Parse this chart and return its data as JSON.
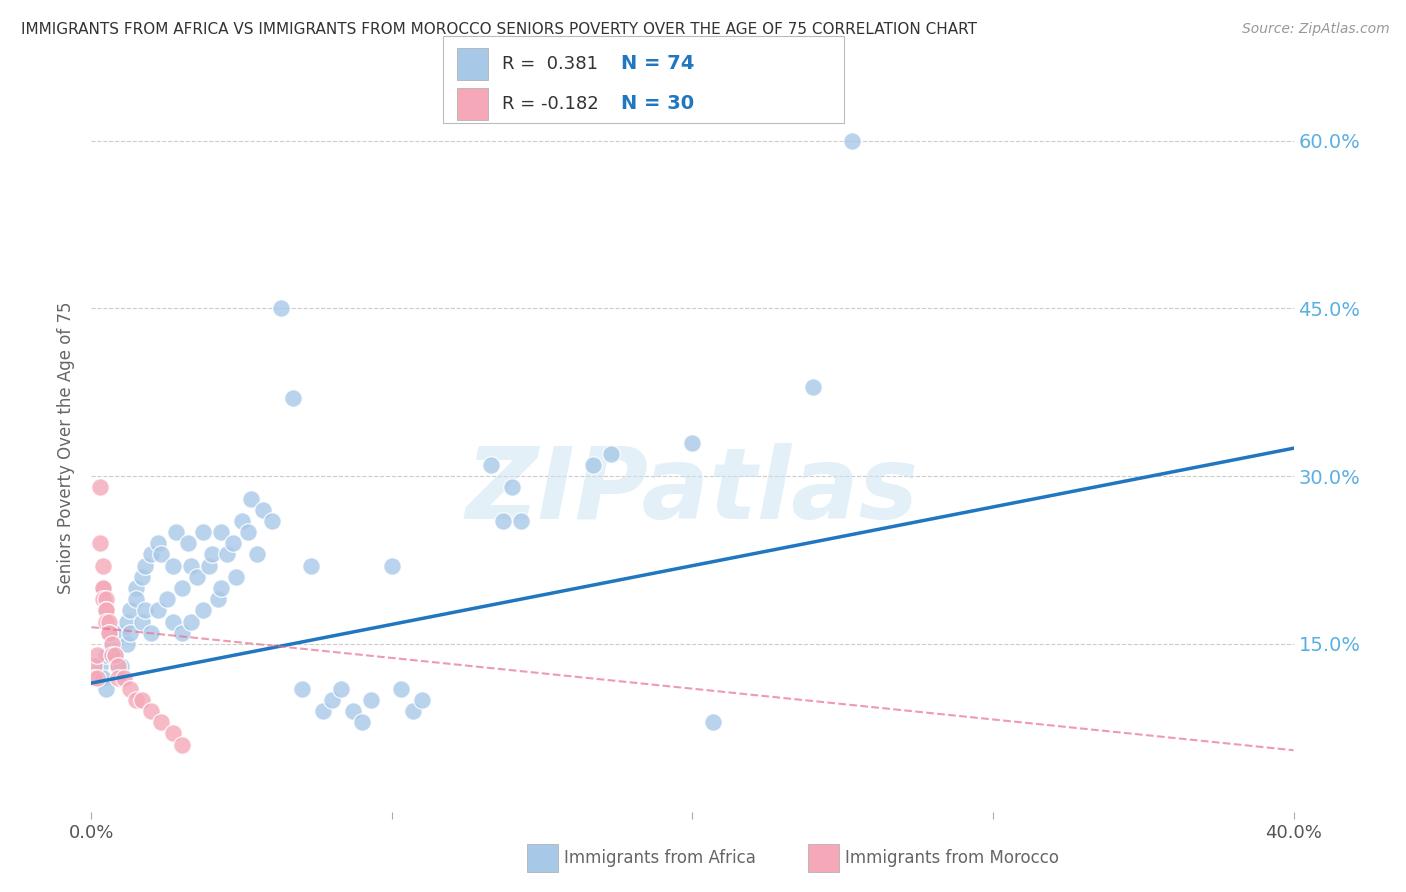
{
  "title": "IMMIGRANTS FROM AFRICA VS IMMIGRANTS FROM MOROCCO SENIORS POVERTY OVER THE AGE OF 75 CORRELATION CHART",
  "source": "Source: ZipAtlas.com",
  "ylabel": "Seniors Poverty Over the Age of 75",
  "xlim": [
    0.0,
    0.4
  ],
  "ylim": [
    0.0,
    0.65
  ],
  "yticks_right": [
    0.15,
    0.3,
    0.45,
    0.6
  ],
  "ytick_labels_right": [
    "15.0%",
    "30.0%",
    "45.0%",
    "60.0%"
  ],
  "xticks": [
    0.0,
    0.1,
    0.2,
    0.3,
    0.4
  ],
  "xtick_labels": [
    "0.0%",
    "",
    "",
    "",
    "40.0%"
  ],
  "grid_color": "#cccccc",
  "background_color": "#ffffff",
  "watermark": "ZIPatlas",
  "legend_R_africa": "R =  0.381",
  "legend_N_africa": "N = 74",
  "legend_R_morocco": "R = -0.182",
  "legend_N_morocco": "N = 30",
  "legend_text_color": "#2176c0",
  "legend_R_color": "#333333",
  "africa_color": "#a8c8e8",
  "morocco_color": "#f4a8b8",
  "africa_line_color": "#2176c0",
  "morocco_line_color": "#e87090",
  "right_label_color": "#5ab0e0",
  "africa_scatter": [
    [
      0.003,
      0.13
    ],
    [
      0.004,
      0.12
    ],
    [
      0.005,
      0.14
    ],
    [
      0.005,
      0.11
    ],
    [
      0.007,
      0.15
    ],
    [
      0.008,
      0.14
    ],
    [
      0.009,
      0.13
    ],
    [
      0.01,
      0.16
    ],
    [
      0.01,
      0.13
    ],
    [
      0.012,
      0.17
    ],
    [
      0.012,
      0.15
    ],
    [
      0.013,
      0.18
    ],
    [
      0.013,
      0.16
    ],
    [
      0.015,
      0.2
    ],
    [
      0.015,
      0.19
    ],
    [
      0.017,
      0.21
    ],
    [
      0.017,
      0.17
    ],
    [
      0.018,
      0.22
    ],
    [
      0.018,
      0.18
    ],
    [
      0.02,
      0.23
    ],
    [
      0.02,
      0.16
    ],
    [
      0.022,
      0.24
    ],
    [
      0.022,
      0.18
    ],
    [
      0.023,
      0.23
    ],
    [
      0.025,
      0.19
    ],
    [
      0.027,
      0.22
    ],
    [
      0.027,
      0.17
    ],
    [
      0.028,
      0.25
    ],
    [
      0.03,
      0.2
    ],
    [
      0.03,
      0.16
    ],
    [
      0.032,
      0.24
    ],
    [
      0.033,
      0.22
    ],
    [
      0.033,
      0.17
    ],
    [
      0.035,
      0.21
    ],
    [
      0.037,
      0.25
    ],
    [
      0.037,
      0.18
    ],
    [
      0.039,
      0.22
    ],
    [
      0.04,
      0.23
    ],
    [
      0.042,
      0.19
    ],
    [
      0.043,
      0.25
    ],
    [
      0.043,
      0.2
    ],
    [
      0.045,
      0.23
    ],
    [
      0.047,
      0.24
    ],
    [
      0.048,
      0.21
    ],
    [
      0.05,
      0.26
    ],
    [
      0.052,
      0.25
    ],
    [
      0.053,
      0.28
    ],
    [
      0.055,
      0.23
    ],
    [
      0.057,
      0.27
    ],
    [
      0.06,
      0.26
    ],
    [
      0.063,
      0.45
    ],
    [
      0.067,
      0.37
    ],
    [
      0.07,
      0.11
    ],
    [
      0.073,
      0.22
    ],
    [
      0.077,
      0.09
    ],
    [
      0.08,
      0.1
    ],
    [
      0.083,
      0.11
    ],
    [
      0.087,
      0.09
    ],
    [
      0.09,
      0.08
    ],
    [
      0.093,
      0.1
    ],
    [
      0.1,
      0.22
    ],
    [
      0.103,
      0.11
    ],
    [
      0.107,
      0.09
    ],
    [
      0.11,
      0.1
    ],
    [
      0.133,
      0.31
    ],
    [
      0.137,
      0.26
    ],
    [
      0.14,
      0.29
    ],
    [
      0.143,
      0.26
    ],
    [
      0.167,
      0.31
    ],
    [
      0.173,
      0.32
    ],
    [
      0.2,
      0.33
    ],
    [
      0.207,
      0.08
    ],
    [
      0.24,
      0.38
    ],
    [
      0.253,
      0.6
    ]
  ],
  "morocco_scatter": [
    [
      0.001,
      0.13
    ],
    [
      0.001,
      0.12
    ],
    [
      0.002,
      0.14
    ],
    [
      0.002,
      0.12
    ],
    [
      0.003,
      0.29
    ],
    [
      0.003,
      0.24
    ],
    [
      0.004,
      0.22
    ],
    [
      0.004,
      0.2
    ],
    [
      0.004,
      0.2
    ],
    [
      0.004,
      0.19
    ],
    [
      0.005,
      0.19
    ],
    [
      0.005,
      0.18
    ],
    [
      0.005,
      0.18
    ],
    [
      0.005,
      0.17
    ],
    [
      0.006,
      0.17
    ],
    [
      0.006,
      0.16
    ],
    [
      0.006,
      0.16
    ],
    [
      0.007,
      0.15
    ],
    [
      0.007,
      0.14
    ],
    [
      0.008,
      0.14
    ],
    [
      0.009,
      0.13
    ],
    [
      0.009,
      0.12
    ],
    [
      0.011,
      0.12
    ],
    [
      0.013,
      0.11
    ],
    [
      0.015,
      0.1
    ],
    [
      0.017,
      0.1
    ],
    [
      0.02,
      0.09
    ],
    [
      0.023,
      0.08
    ],
    [
      0.027,
      0.07
    ],
    [
      0.03,
      0.06
    ]
  ],
  "africa_trend": {
    "x_start": 0.0,
    "y_start": 0.115,
    "x_end": 0.4,
    "y_end": 0.325
  },
  "morocco_trend": {
    "x_start": 0.0,
    "y_start": 0.165,
    "x_end": 0.4,
    "y_end": 0.055
  }
}
